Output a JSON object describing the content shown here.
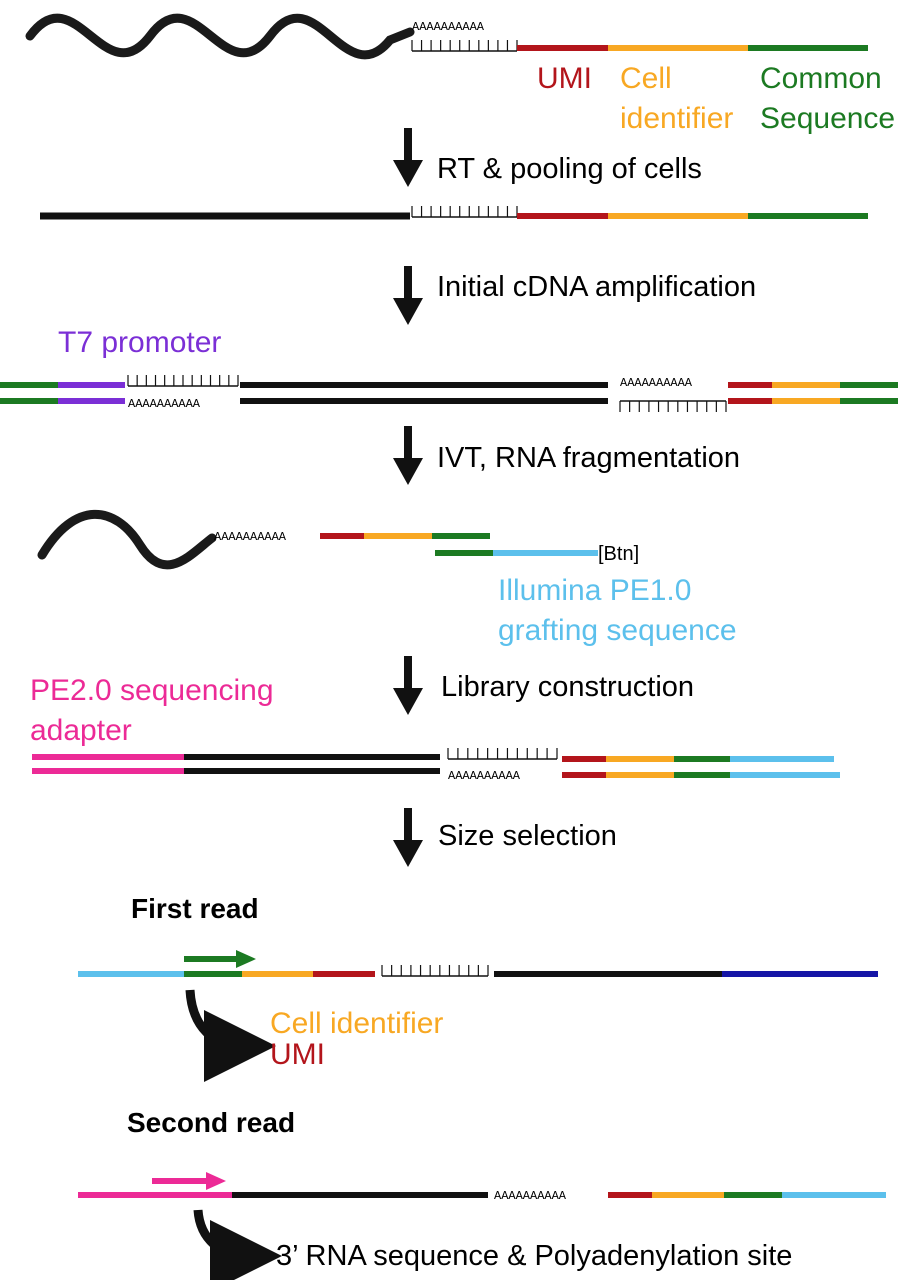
{
  "colors": {
    "black": "#111111",
    "umi": "#b3151b",
    "cell": "#f8a823",
    "common": "#1c7a22",
    "t7": "#7b2fd6",
    "illumina": "#5cc0ec",
    "pe2": "#ec2a96",
    "navy": "#1515a6"
  },
  "seq": {
    "polyA": "AAAAAAAAAA",
    "polyT": "TTTTTTTTTTT"
  },
  "labels": {
    "umi": "UMI",
    "cell_line1": "Cell",
    "cell_line2": "identifier",
    "common_line1": "Common",
    "common_line2": "Sequence",
    "t7": "T7 promoter",
    "btn": "[Btn]",
    "illumina_line1": "Illumina PE1.0",
    "illumina_line2": "grafting sequence",
    "pe2_line1": "PE2.0 sequencing",
    "pe2_line2": "adapter",
    "first_read": "First read",
    "cell_identifier": "Cell identifier",
    "umi2": "UMI",
    "second_read": "Second read",
    "result": "3’ RNA sequence & Polyadenylation site"
  },
  "steps": [
    "RT & pooling of cells",
    "Initial cDNA amplification",
    "IVT, RNA fragmentation",
    "Library construction",
    "Size selection"
  ]
}
